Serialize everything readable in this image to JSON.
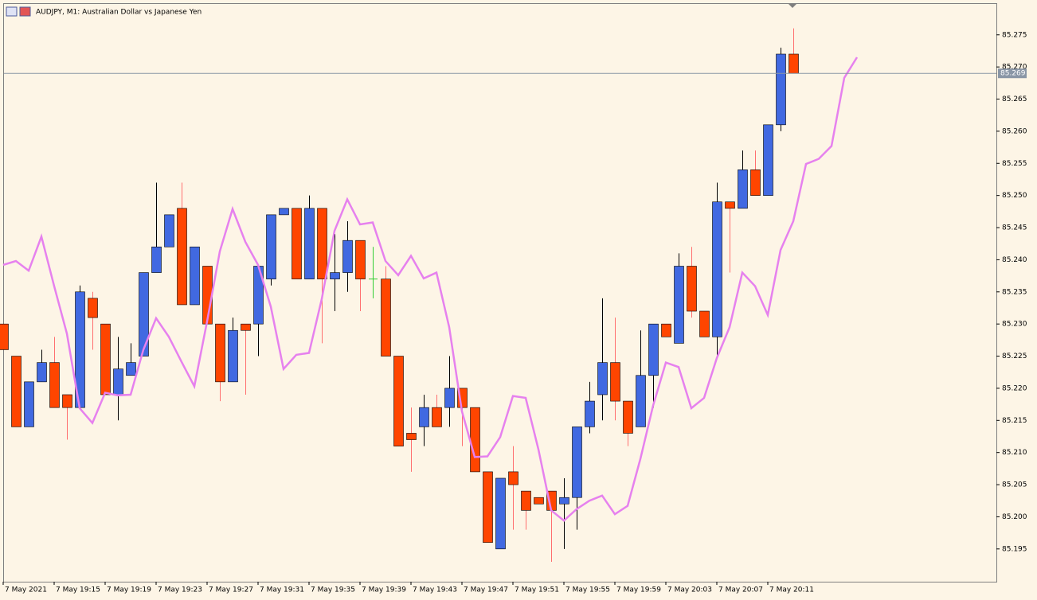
{
  "chart_data": {
    "type": "candlestick",
    "title": "AUDJPY, M1:  Australian Dollar vs Japanese Yen",
    "categories": [
      "7 May 2021",
      null,
      null,
      null,
      "7 May 19:15",
      null,
      null,
      null,
      "7 May 19:19",
      null,
      null,
      null,
      "7 May 19:23",
      null,
      null,
      null,
      "7 May 19:27",
      null,
      null,
      null,
      "7 May 19:31",
      null,
      null,
      null,
      "7 May 19:35",
      null,
      null,
      null,
      "7 May 19:39",
      null,
      null,
      null,
      "7 May 19:43",
      null,
      null,
      null,
      "7 May 19:47",
      null,
      null,
      null,
      "7 May 19:51",
      null,
      null,
      null,
      "7 May 19:55",
      null,
      null,
      null,
      "7 May 19:59",
      null,
      null,
      null,
      "7 May 20:03",
      null,
      null,
      null,
      "7 May 20:07",
      null,
      null,
      null,
      "7 May 20:11",
      null,
      null,
      null,
      null,
      null,
      null,
      null
    ],
    "open": [
      85.23,
      85.225,
      85.214,
      85.221,
      85.224,
      85.219,
      85.217,
      85.234,
      85.23,
      85.219,
      85.222,
      85.225,
      85.238,
      85.242,
      85.248,
      85.233,
      85.239,
      85.23,
      85.221,
      85.23,
      85.23,
      85.237,
      85.247,
      85.248,
      85.237,
      85.248,
      85.237,
      85.238,
      85.243,
      85.237,
      85.237,
      85.225,
      85.213,
      85.214,
      85.217,
      85.217,
      85.22,
      85.217,
      85.207,
      85.195,
      85.207,
      85.204,
      85.203,
      85.204,
      85.202,
      85.203,
      85.214,
      85.219,
      85.224,
      85.218,
      85.214,
      85.222,
      85.23,
      85.227,
      85.239,
      85.232,
      85.228,
      85.249,
      85.248,
      85.254,
      85.25,
      85.261,
      85.272,
      null,
      null,
      null,
      null,
      null
    ],
    "high": [
      85.23,
      85.225,
      85.221,
      85.226,
      85.228,
      85.219,
      85.236,
      85.235,
      85.23,
      85.228,
      85.227,
      85.238,
      85.252,
      85.247,
      85.252,
      85.242,
      85.239,
      85.23,
      85.231,
      85.23,
      85.239,
      85.247,
      85.248,
      85.248,
      85.25,
      85.248,
      85.244,
      85.246,
      85.243,
      85.242,
      85.239,
      85.225,
      85.217,
      85.219,
      85.219,
      85.225,
      85.22,
      85.217,
      85.207,
      85.206,
      85.211,
      85.204,
      85.203,
      85.204,
      85.206,
      85.214,
      85.221,
      85.234,
      85.231,
      85.218,
      85.229,
      85.23,
      85.23,
      85.241,
      85.242,
      85.232,
      85.252,
      85.249,
      85.257,
      85.257,
      85.261,
      85.273,
      85.276,
      null,
      null,
      null,
      null,
      null
    ],
    "low": [
      85.226,
      85.214,
      85.214,
      85.221,
      85.217,
      85.212,
      85.217,
      85.226,
      85.219,
      85.215,
      85.222,
      85.225,
      85.238,
      85.242,
      85.233,
      85.233,
      85.23,
      85.218,
      85.221,
      85.219,
      85.225,
      85.236,
      85.247,
      85.237,
      85.237,
      85.227,
      85.232,
      85.235,
      85.232,
      85.234,
      85.225,
      85.211,
      85.207,
      85.211,
      85.214,
      85.214,
      85.211,
      85.207,
      85.196,
      85.195,
      85.198,
      85.198,
      85.202,
      85.193,
      85.195,
      85.198,
      85.213,
      85.215,
      85.215,
      85.211,
      85.214,
      85.217,
      85.228,
      85.227,
      85.231,
      85.228,
      85.225,
      85.238,
      85.248,
      85.25,
      85.25,
      85.26,
      85.269,
      null,
      null,
      null,
      null,
      null
    ],
    "close": [
      85.226,
      85.214,
      85.221,
      85.224,
      85.217,
      85.217,
      85.235,
      85.231,
      85.219,
      85.223,
      85.224,
      85.238,
      85.242,
      85.247,
      85.233,
      85.242,
      85.23,
      85.221,
      85.229,
      85.229,
      85.239,
      85.247,
      85.248,
      85.237,
      85.248,
      85.237,
      85.238,
      85.243,
      85.237,
      85.237,
      85.225,
      85.211,
      85.212,
      85.217,
      85.214,
      85.22,
      85.217,
      85.207,
      85.196,
      85.206,
      85.205,
      85.201,
      85.202,
      85.201,
      85.203,
      85.214,
      85.218,
      85.224,
      85.218,
      85.213,
      85.222,
      85.23,
      85.228,
      85.239,
      85.232,
      85.228,
      85.249,
      85.248,
      85.254,
      85.25,
      85.261,
      85.272,
      85.269,
      null,
      null,
      null,
      null,
      null
    ],
    "indicator": {
      "color": "#e681ee",
      "values": [
        85.2392,
        85.2398,
        85.2383,
        85.2436,
        85.2359,
        85.2285,
        85.2169,
        85.2146,
        85.2193,
        85.2189,
        85.219,
        85.226,
        85.2309,
        85.228,
        85.2241,
        85.2203,
        85.2304,
        85.2413,
        85.2479,
        85.2428,
        85.2392,
        85.2327,
        85.223,
        85.2252,
        85.2255,
        85.2339,
        85.2445,
        85.2494,
        85.2455,
        85.2458,
        85.2398,
        85.2376,
        85.2406,
        85.2371,
        85.238,
        85.2295,
        85.2164,
        85.2093,
        85.2094,
        85.2124,
        85.2188,
        85.2185,
        85.2105,
        85.201,
        85.1994,
        85.2012,
        85.2025,
        85.2033,
        85.2004,
        85.2017,
        85.209,
        85.2173,
        85.224,
        85.2233,
        85.2169,
        85.2185,
        85.2247,
        85.2295,
        85.238,
        85.2359,
        85.2314,
        85.2415,
        85.246,
        85.2549,
        85.2557,
        85.2577,
        85.2683,
        85.2715
      ]
    },
    "bull_color": "#4169e1",
    "bear_color": "#ff4500",
    "doji_color": "#32cd32",
    "bull_wick_color": "#000000",
    "bear_wick_color": "#ff6f6f",
    "current_price": 85.269,
    "ylim": [
      85.1899,
      85.2798
    ],
    "yticks": [
      85.195,
      {
        "value": 85.2,
        "label": "85.200"
      },
      85.205,
      {
        "value": 85.21,
        "label": "85.210"
      },
      85.215,
      {
        "value": 85.22,
        "label": "85.220"
      },
      85.225,
      {
        "value": 85.23,
        "label": "85.230"
      },
      85.235,
      {
        "value": 85.24,
        "label": "85.240"
      },
      85.245,
      {
        "value": 85.25,
        "label": "85.250"
      },
      85.255,
      {
        "value": 85.26,
        "label": "85.260"
      },
      85.265,
      {
        "value": 85.27,
        "label": "85.270"
      },
      85.275
    ],
    "grid": false
  }
}
